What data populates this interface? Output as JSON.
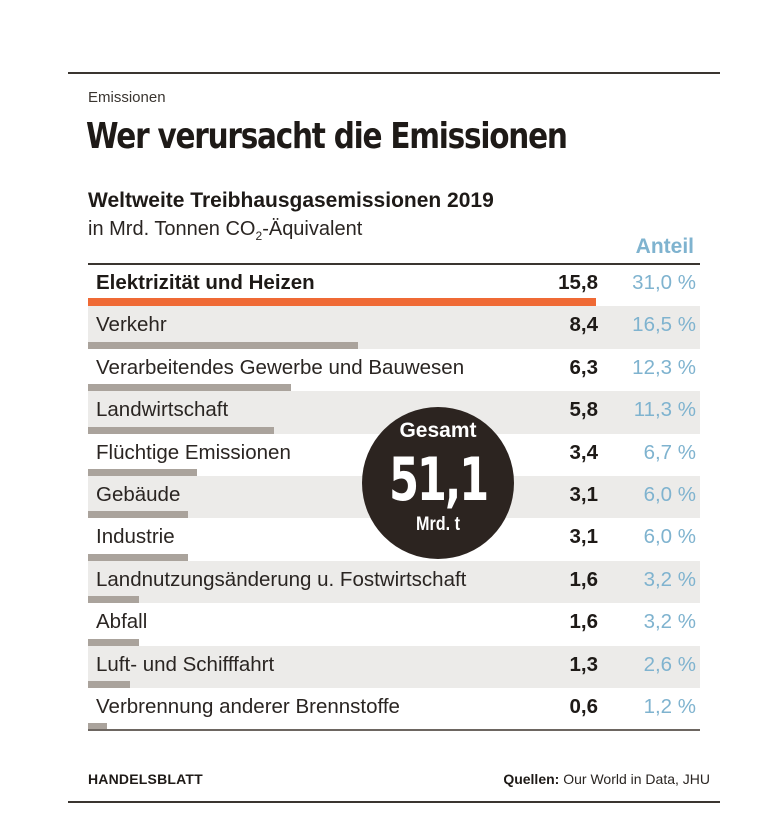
{
  "kicker": "Emissionen",
  "headline": "Wer verursacht die Emissionen",
  "subtitle": "Weltweite Treibhausgasemissionen 2019",
  "unit_prefix": "in Mrd. Tonnen CO",
  "unit_sub": "2",
  "unit_suffix": "-Äquivalent",
  "share_header": "Anteil",
  "total": {
    "title": "Gesamt",
    "value": "51,1",
    "unit": "Mrd. t"
  },
  "footer": {
    "brand": "HANDELSBLATT",
    "source_label": "Quellen:",
    "source_text": " Our World in Data, JHU"
  },
  "colors": {
    "highlight_bar": "#ef6a35",
    "bar": "#aaa39c",
    "share_text": "#7fb3cf",
    "badge": "#2c2420",
    "row_shade": "#ecebe9"
  },
  "chart_data": {
    "type": "bar",
    "orientation": "horizontal",
    "title": "Weltweite Treibhausgasemissionen 2019",
    "unit": "in Mrd. Tonnen CO2-Äquivalent",
    "categories": [
      "Elektrizität und Heizen",
      "Verkehr",
      "Verarbeitendes Gewerbe und Bauwesen",
      "Landwirtschaft",
      "Flüchtige Emissionen",
      "Gebäude",
      "Industrie",
      "Landnutzungsänderung u. Fostwirtschaft",
      "Abfall",
      "Luft- und Schifffahrt",
      "Verbrennung anderer Brennstoffe"
    ],
    "values": [
      15.8,
      8.4,
      6.3,
      5.8,
      3.4,
      3.1,
      3.1,
      1.6,
      1.6,
      1.3,
      0.6
    ],
    "value_labels": [
      "15,8",
      "8,4",
      "6,3",
      "5,8",
      "3,4",
      "3,1",
      "3,1",
      "1,6",
      "1,6",
      "1,3",
      "0,6"
    ],
    "share_labels": [
      "31,0 %",
      "16,5 %",
      "12,3 %",
      "11,3 %",
      "6,7 %",
      "6,0 %",
      "6,0 %",
      "3,2 %",
      "3,2 %",
      "2,6 %",
      "1,2 %"
    ],
    "highlighted_index": 0,
    "xlim": [
      0,
      15.8
    ],
    "total": 51.1
  }
}
